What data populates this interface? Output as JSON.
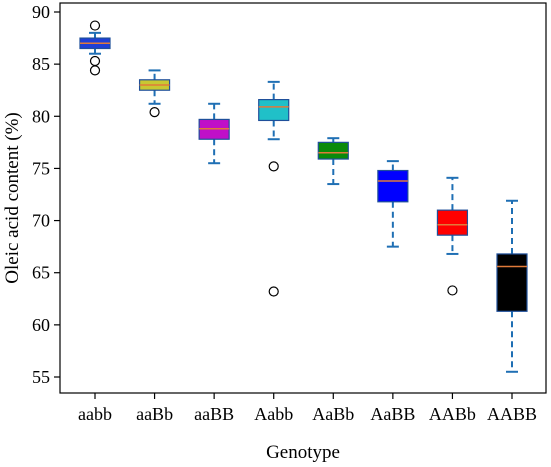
{
  "chart_data": {
    "type": "box",
    "xlabel": "Genotype",
    "ylabel": "Oleic acid content (%)",
    "ylim": [
      54,
      90.5
    ],
    "yticks": [
      55,
      60,
      65,
      70,
      75,
      80,
      85,
      90
    ],
    "categories": [
      "aabb",
      "aaBb",
      "aaBB",
      "Aabb",
      "AaBb",
      "AaBB",
      "AABb",
      "AABB"
    ],
    "boxes": [
      {
        "category": "aabb",
        "whisker_low": 86.0,
        "q1": 86.5,
        "median": 87.0,
        "q3": 87.5,
        "whisker_high": 88.0,
        "outliers": [
          88.7,
          85.3,
          84.4
        ],
        "color": "#1f3fd6"
      },
      {
        "category": "aaBb",
        "whisker_low": 81.2,
        "q1": 82.5,
        "median": 83.0,
        "q3": 83.5,
        "whisker_high": 84.4,
        "outliers": [
          80.4
        ],
        "color": "#c8c832"
      },
      {
        "category": "aaBB",
        "whisker_low": 75.5,
        "q1": 77.8,
        "median": 78.8,
        "q3": 79.7,
        "whisker_high": 81.2,
        "outliers": [],
        "color": "#c010c8"
      },
      {
        "category": "Aabb",
        "whisker_low": 77.8,
        "q1": 79.6,
        "median": 80.9,
        "q3": 81.6,
        "whisker_high": 83.3,
        "outliers": [
          75.2,
          63.2
        ],
        "color": "#20c0c8"
      },
      {
        "category": "AaBb",
        "whisker_low": 73.5,
        "q1": 75.9,
        "median": 76.5,
        "q3": 77.5,
        "whisker_high": 77.9,
        "outliers": [],
        "color": "#0a8a0a"
      },
      {
        "category": "AaBB",
        "whisker_low": 67.5,
        "q1": 71.8,
        "median": 73.8,
        "q3": 74.8,
        "whisker_high": 75.7,
        "outliers": [],
        "color": "#0000ff"
      },
      {
        "category": "AABb",
        "whisker_low": 66.8,
        "q1": 68.6,
        "median": 69.6,
        "q3": 71.0,
        "whisker_high": 74.1,
        "outliers": [
          63.3
        ],
        "color": "#ff0000"
      },
      {
        "category": "AABB",
        "whisker_low": 55.5,
        "q1": 61.3,
        "median": 65.6,
        "q3": 66.8,
        "whisker_high": 71.9,
        "outliers": [],
        "color": "#000000"
      }
    ],
    "whisker_style": "dashed",
    "whisker_color": "#1f6fb4",
    "median_color": "#e07a3a",
    "grid": false
  }
}
